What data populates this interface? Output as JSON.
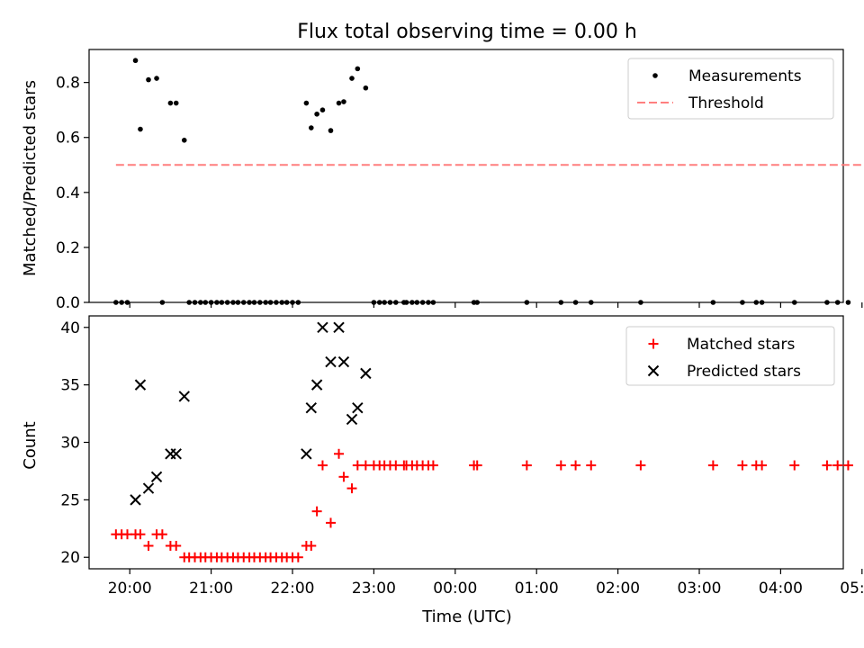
{
  "figure": {
    "title": "Flux total observing time = 0.00 h",
    "xlabel": "Time (UTC)",
    "x_ticks": [
      "20:00",
      "21:00",
      "22:00",
      "23:00",
      "00:00",
      "01:00",
      "02:00",
      "03:00",
      "04:00",
      "05:00"
    ]
  },
  "chart_data": [
    {
      "type": "scatter",
      "title": "Flux total observing time = 0.00 h",
      "xlabel": "",
      "ylabel": "Matched/Predicted stars",
      "x_unit": "hours since 20:00 UTC",
      "xlim": [
        -0.5,
        8.77
      ],
      "ylim": [
        0,
        0.92
      ],
      "y_ticks": [
        0.0,
        0.2,
        0.4,
        0.6,
        0.8
      ],
      "legend": {
        "position": "top-right",
        "entries": [
          "Measurements",
          "Threshold"
        ]
      },
      "series": [
        {
          "name": "Measurements",
          "color": "#000000",
          "marker": "dot",
          "points": [
            [
              -0.17,
              0
            ],
            [
              -0.1,
              0
            ],
            [
              -0.03,
              0
            ],
            [
              0.07,
              0.88
            ],
            [
              0.13,
              0.63
            ],
            [
              0.23,
              0.81
            ],
            [
              0.33,
              0.815
            ],
            [
              0.4,
              0
            ],
            [
              0.5,
              0.725
            ],
            [
              0.57,
              0.725
            ],
            [
              0.67,
              0.59
            ],
            [
              0.73,
              0
            ],
            [
              0.8,
              0
            ],
            [
              0.87,
              0
            ],
            [
              0.93,
              0
            ],
            [
              1.0,
              0
            ],
            [
              1.07,
              0
            ],
            [
              1.13,
              0
            ],
            [
              1.2,
              0
            ],
            [
              1.27,
              0
            ],
            [
              1.33,
              0
            ],
            [
              1.4,
              0
            ],
            [
              1.47,
              0
            ],
            [
              1.53,
              0
            ],
            [
              1.6,
              0
            ],
            [
              1.67,
              0
            ],
            [
              1.73,
              0
            ],
            [
              1.8,
              0
            ],
            [
              1.87,
              0
            ],
            [
              1.93,
              0
            ],
            [
              2.0,
              0
            ],
            [
              2.07,
              0
            ],
            [
              2.17,
              0.725
            ],
            [
              2.23,
              0.635
            ],
            [
              2.3,
              0.685
            ],
            [
              2.37,
              0.7
            ],
            [
              2.47,
              0.625
            ],
            [
              2.57,
              0.725
            ],
            [
              2.63,
              0.73
            ],
            [
              2.73,
              0.815
            ],
            [
              2.8,
              0.85
            ],
            [
              2.9,
              0.78
            ],
            [
              3.0,
              0
            ],
            [
              3.07,
              0
            ],
            [
              3.13,
              0
            ],
            [
              3.2,
              0
            ],
            [
              3.27,
              0
            ],
            [
              3.37,
              0
            ],
            [
              3.4,
              0
            ],
            [
              3.47,
              0
            ],
            [
              3.53,
              0
            ],
            [
              3.6,
              0
            ],
            [
              3.67,
              0
            ],
            [
              3.73,
              0
            ],
            [
              4.23,
              0
            ],
            [
              4.27,
              0
            ],
            [
              4.88,
              0
            ],
            [
              5.3,
              0
            ],
            [
              5.48,
              0
            ],
            [
              5.67,
              0
            ],
            [
              6.28,
              0
            ],
            [
              7.17,
              0
            ],
            [
              7.53,
              0
            ],
            [
              7.7,
              0
            ],
            [
              7.77,
              0
            ],
            [
              8.17,
              0
            ],
            [
              8.57,
              0
            ],
            [
              8.7,
              0
            ],
            [
              8.83,
              0
            ],
            [
              9.12,
              0
            ]
          ]
        },
        {
          "name": "Threshold",
          "color": "#ff7f7f",
          "line": "dashed",
          "points": [
            [
              -0.17,
              0.5
            ],
            [
              9.12,
              0.5
            ]
          ]
        }
      ]
    },
    {
      "type": "scatter",
      "title": "",
      "xlabel": "Time (UTC)",
      "ylabel": "Count",
      "x_unit": "hours since 20:00 UTC",
      "xlim": [
        -0.5,
        8.77
      ],
      "ylim": [
        19.0,
        41.0
      ],
      "y_ticks": [
        20,
        25,
        30,
        35,
        40
      ],
      "legend": {
        "position": "top-right",
        "entries": [
          "Matched stars",
          "Predicted stars"
        ]
      },
      "series": [
        {
          "name": "Matched stars",
          "color": "#ff0000",
          "marker": "plus",
          "points": [
            [
              -0.17,
              22
            ],
            [
              -0.1,
              22
            ],
            [
              -0.03,
              22
            ],
            [
              0.07,
              22
            ],
            [
              0.13,
              22
            ],
            [
              0.23,
              21
            ],
            [
              0.33,
              22
            ],
            [
              0.4,
              22
            ],
            [
              0.5,
              21
            ],
            [
              0.57,
              21
            ],
            [
              0.67,
              20
            ],
            [
              0.73,
              20
            ],
            [
              0.8,
              20
            ],
            [
              0.87,
              20
            ],
            [
              0.93,
              20
            ],
            [
              1.0,
              20
            ],
            [
              1.07,
              20
            ],
            [
              1.13,
              20
            ],
            [
              1.2,
              20
            ],
            [
              1.27,
              20
            ],
            [
              1.33,
              20
            ],
            [
              1.4,
              20
            ],
            [
              1.47,
              20
            ],
            [
              1.53,
              20
            ],
            [
              1.6,
              20
            ],
            [
              1.67,
              20
            ],
            [
              1.73,
              20
            ],
            [
              1.8,
              20
            ],
            [
              1.87,
              20
            ],
            [
              1.93,
              20
            ],
            [
              2.0,
              20
            ],
            [
              2.07,
              20
            ],
            [
              2.17,
              21
            ],
            [
              2.23,
              21
            ],
            [
              2.3,
              24
            ],
            [
              2.37,
              28
            ],
            [
              2.47,
              23
            ],
            [
              2.57,
              29
            ],
            [
              2.63,
              27
            ],
            [
              2.73,
              26
            ],
            [
              2.8,
              28
            ],
            [
              2.9,
              28
            ],
            [
              3.0,
              28
            ],
            [
              3.07,
              28
            ],
            [
              3.13,
              28
            ],
            [
              3.2,
              28
            ],
            [
              3.27,
              28
            ],
            [
              3.37,
              28
            ],
            [
              3.4,
              28
            ],
            [
              3.47,
              28
            ],
            [
              3.53,
              28
            ],
            [
              3.6,
              28
            ],
            [
              3.67,
              28
            ],
            [
              3.73,
              28
            ],
            [
              4.23,
              28
            ],
            [
              4.27,
              28
            ],
            [
              4.88,
              28
            ],
            [
              5.3,
              28
            ],
            [
              5.48,
              28
            ],
            [
              5.67,
              28
            ],
            [
              6.28,
              28
            ],
            [
              7.17,
              28
            ],
            [
              7.53,
              28
            ],
            [
              7.7,
              28
            ],
            [
              7.77,
              28
            ],
            [
              8.17,
              28
            ],
            [
              8.57,
              28
            ],
            [
              8.7,
              28
            ],
            [
              8.83,
              28
            ],
            [
              9.12,
              28
            ]
          ]
        },
        {
          "name": "Predicted stars",
          "color": "#000000",
          "marker": "x",
          "points": [
            [
              0.07,
              25
            ],
            [
              0.13,
              35
            ],
            [
              0.23,
              26
            ],
            [
              0.33,
              27
            ],
            [
              0.5,
              29
            ],
            [
              0.57,
              29
            ],
            [
              0.67,
              34
            ],
            [
              2.17,
              29
            ],
            [
              2.23,
              33
            ],
            [
              2.3,
              35
            ],
            [
              2.37,
              40
            ],
            [
              2.47,
              37
            ],
            [
              2.57,
              40
            ],
            [
              2.63,
              37
            ],
            [
              2.73,
              32
            ],
            [
              2.8,
              33
            ],
            [
              2.9,
              36
            ]
          ]
        }
      ]
    }
  ]
}
